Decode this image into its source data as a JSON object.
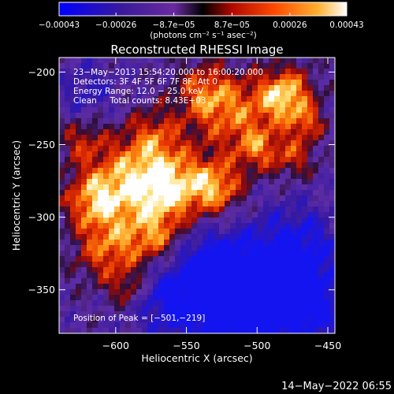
{
  "chart_data": {
    "type": "heatmap",
    "title": "Reconstructed RHESSI Image",
    "xlabel": "Heliocentric X (arcsec)",
    "ylabel": "Heliocentric Y (arcsec)",
    "xlim": [
      -640,
      -445
    ],
    "ylim": [
      -380,
      -190
    ],
    "x_ticks": [
      -600,
      -550,
      -500,
      -450
    ],
    "x_tick_labels": [
      "−600",
      "−550",
      "−500",
      "−450"
    ],
    "y_ticks": [
      -200,
      -250,
      -300,
      -350
    ],
    "y_tick_labels": [
      "−200",
      "−250",
      "−300",
      "−350"
    ],
    "colorbar": {
      "range": [
        -0.00043,
        0.00043
      ],
      "ticks": [
        -0.00043,
        -0.00026,
        -8.7e-05,
        8.7e-05,
        0.00026,
        0.00043
      ],
      "tick_labels": [
        "−0.00043",
        "−0.00026",
        "−8.7e−05",
        "8.7e−05",
        "0.00026",
        "0.00043"
      ],
      "unit_label": "(photons cm⁻² s⁻¹ asec⁻²)",
      "colors": [
        "#0000ff",
        "#3a1a9a",
        "#7a3ab0",
        "#000000",
        "#c01000",
        "#ff5000",
        "#ffb030",
        "#ffffff"
      ]
    },
    "annotations": [
      "23−May−2013 15:54:20.000 to 16:00:20.000",
      "Detectors: 3F 4F 5F 6F 7F 8F, Att 0",
      "Energy Range: 12.0 − 25.0 keV",
      "Clean     Total counts: 8.43E+03"
    ],
    "peak_label": "Position of Peak = [−501,−219]",
    "peak": [
      -501,
      -219
    ],
    "grid": false
  },
  "footer": {
    "timestamp": "14−May−2022 06:55"
  }
}
